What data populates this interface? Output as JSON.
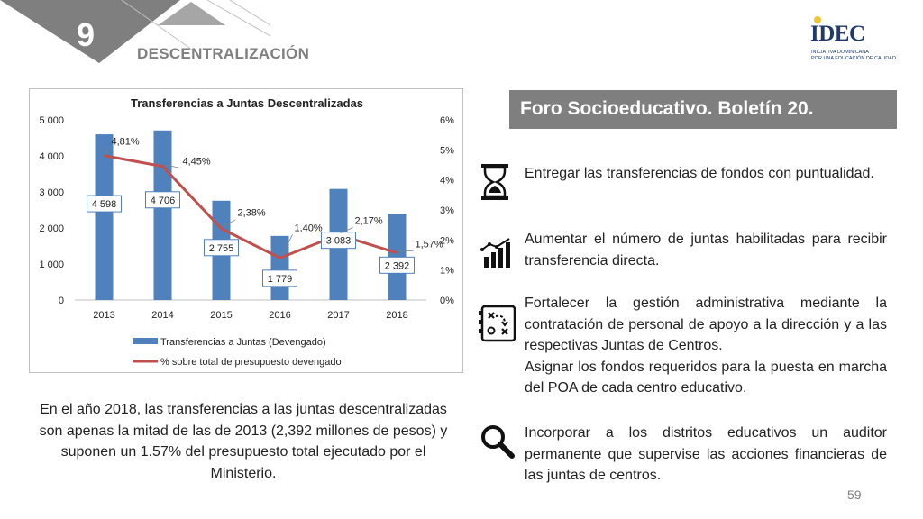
{
  "header": {
    "section_number": "9",
    "section_title": "DESCENTRALIZACIÓN"
  },
  "logo": {
    "word": "IDEC",
    "line1": "INICIATIVA DOMINICANA",
    "line2": "POR UNA EDUCACIÓN DE CALIDAD"
  },
  "chart_data": {
    "type": "bar",
    "title": "Transferencias a Juntas Descentralizadas",
    "categories": [
      "2013",
      "2014",
      "2015",
      "2016",
      "2017",
      "2018"
    ],
    "series": [
      {
        "name": "Transferencias a Juntas (Devengado)",
        "type": "bar",
        "axis": "left",
        "color": "#4f81bd",
        "values": [
          4598,
          4706,
          2755,
          1779,
          3083,
          2392
        ],
        "labels": [
          "4 598",
          "4 706",
          "2 755",
          "1 779",
          "3 083",
          "2 392"
        ]
      },
      {
        "name": "% sobre total de presupuesto devengado",
        "type": "line",
        "axis": "right",
        "color": "#c0504d",
        "values": [
          4.81,
          4.45,
          2.38,
          1.4,
          2.17,
          1.57
        ],
        "labels": [
          "4,81%",
          "4,45%",
          "2,38%",
          "1,40%",
          "2,17%",
          "1,57%"
        ]
      }
    ],
    "ylim": [
      0,
      5000
    ],
    "ylim_right": [
      0,
      6
    ],
    "yticks": [
      "0",
      "1 000",
      "2 000",
      "3 000",
      "4 000",
      "5 000"
    ],
    "yticks_right": [
      "0%",
      "1%",
      "2%",
      "3%",
      "4%",
      "5%",
      "6%"
    ],
    "grid": false,
    "legend_position": "bottom"
  },
  "caption": "En el año 2018, las transferencias a las juntas descentralizadas son apenas la mitad de las de 2013 (2,392 millones de pesos) y suponen un 1.57% del presupuesto total ejecutado por el Ministerio.",
  "banner": "Foro Socioeducativo. Boletín 20.",
  "recommendations": [
    {
      "icon": "hourglass-icon",
      "text": "Entregar las transferencias de fondos con puntualidad."
    },
    {
      "icon": "growth-chart-icon",
      "text": "Aumentar el número de juntas habilitadas para recibir transferencia directa."
    },
    {
      "icon": "strategy-board-icon",
      "text": "Fortalecer la gestión administrativa mediante la contratación de personal de apoyo a la dirección y a las respectivas Juntas de Centros.",
      "text2": "Asignar los fondos requeridos para la puesta en marcha del POA de cada centro educativo."
    },
    {
      "icon": "magnifier-icon",
      "text": "Incorporar a los distritos educativos un auditor permanente que supervise las acciones financieras de las juntas de centros."
    }
  ],
  "page_number": "59",
  "colors": {
    "banner": "#7f7f7f",
    "bar": "#4f81bd",
    "line": "#c0504d",
    "corner_dark": "#7f7f7f"
  }
}
